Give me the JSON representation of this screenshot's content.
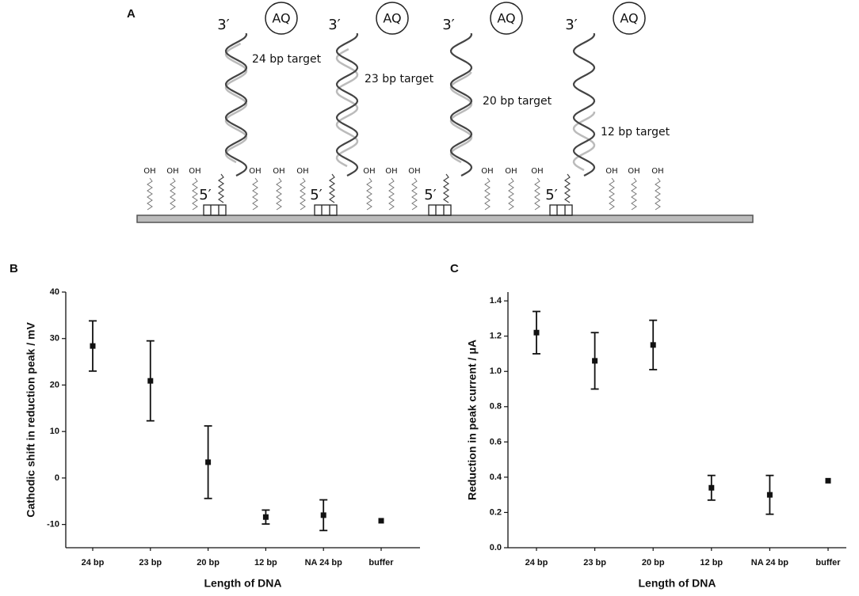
{
  "panel_labels": [
    "A",
    "B",
    "C"
  ],
  "diagram": {
    "hydroxyl": "OH",
    "strands": [
      {
        "end3": "3′",
        "tag": "AQ",
        "end5": "5′",
        "target": "24 bp target"
      },
      {
        "end3": "3′",
        "tag": "AQ",
        "end5": "5′",
        "target": "23 bp target"
      },
      {
        "end3": "3′",
        "tag": "AQ",
        "end5": "5′",
        "target": "20 bp target"
      },
      {
        "end3": "3′",
        "tag": "AQ",
        "end5": "5′",
        "target": "12 bp target"
      }
    ]
  },
  "chart_data": [
    {
      "type": "errorbar",
      "x_label": "Length of DNA",
      "y_label": "Cathodic shift in reduction peak / mV",
      "categories": [
        "24 bp",
        "23 bp",
        "20 bp",
        "12 bp",
        "NA 24 bp",
        "buffer"
      ],
      "values": [
        28.4,
        20.9,
        3.4,
        -8.4,
        -8.0,
        -9.2
      ],
      "errors": [
        5.4,
        8.6,
        7.8,
        1.5,
        3.3,
        null
      ],
      "color": "#111111",
      "ylim": [
        -15,
        40
      ],
      "yticks": [
        -10,
        0,
        10,
        20,
        30,
        40
      ]
    },
    {
      "type": "errorbar",
      "x_label": "Length of DNA",
      "y_label": "Reduction in peak current / μA",
      "categories": [
        "24 bp",
        "23 bp",
        "20 bp",
        "12 bp",
        "NA 24 bp",
        "buffer"
      ],
      "values": [
        1.22,
        1.06,
        1.15,
        0.34,
        0.3,
        0.38
      ],
      "errors": [
        0.12,
        0.16,
        0.14,
        0.07,
        0.11,
        null
      ],
      "color": "#111111",
      "ylim": [
        0,
        1.45
      ],
      "yticks": [
        {
          "value": 0,
          "label": "0.0"
        },
        0.2,
        0.4,
        0.6,
        0.8,
        {
          "value": 1,
          "label": "1.0"
        },
        1.2,
        1.4
      ]
    }
  ]
}
